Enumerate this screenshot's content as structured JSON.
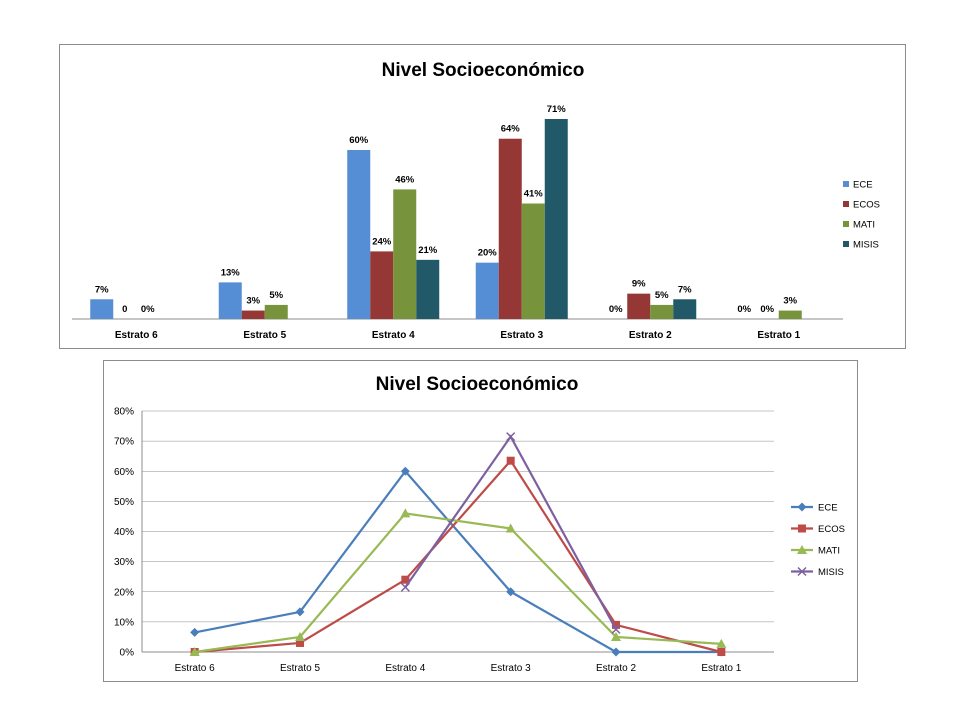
{
  "chart_data": [
    {
      "type": "bar",
      "title": "Nivel Socioeconómico",
      "categories": [
        "Estrato 6",
        "Estrato 5",
        "Estrato 4",
        "Estrato 3",
        "Estrato 2",
        "Estrato 1"
      ],
      "series": [
        {
          "name": "ECE",
          "color": "#558ED5",
          "values": [
            7,
            13,
            60,
            20,
            0,
            0
          ],
          "labels": [
            "7%",
            "13%",
            "60%",
            "20%",
            "0%",
            "0%"
          ]
        },
        {
          "name": "ECOS",
          "color": "#953735",
          "values": [
            0,
            3,
            24,
            64,
            9,
            0
          ],
          "labels": [
            "0",
            "3%",
            "24%",
            "64%",
            "9%",
            "0%"
          ]
        },
        {
          "name": "MATI",
          "color": "#77933C",
          "values": [
            0,
            5,
            46,
            41,
            5,
            3
          ],
          "labels": [
            "0%",
            "5%",
            "46%",
            "41%",
            "5%",
            "3%"
          ]
        },
        {
          "name": "MISIS",
          "color": "#215968",
          "values": [
            null,
            null,
            21,
            71,
            7,
            null
          ],
          "labels": [
            null,
            null,
            "21%",
            "71%",
            "7%",
            null
          ]
        }
      ],
      "ylim": [
        0,
        71
      ],
      "grid": false,
      "legend_position": "right",
      "xlabel": "",
      "ylabel": ""
    },
    {
      "type": "line",
      "title": "Nivel Socioeconómico",
      "categories": [
        "Estrato 6",
        "Estrato 5",
        "Estrato 4",
        "Estrato 3",
        "Estrato 2",
        "Estrato 1"
      ],
      "series": [
        {
          "name": "ECE",
          "color": "#4A7EBB",
          "marker": "diamond",
          "values": [
            6.5,
            13.3,
            60,
            20,
            0,
            0
          ]
        },
        {
          "name": "ECOS",
          "color": "#BE4B48",
          "marker": "square",
          "values": [
            0,
            3,
            24,
            63.5,
            9,
            0
          ]
        },
        {
          "name": "MATI",
          "color": "#98B954",
          "marker": "triangle",
          "values": [
            0,
            5,
            46,
            41,
            5,
            2.7
          ]
        },
        {
          "name": "MISIS",
          "color": "#7D60A0",
          "marker": "x",
          "values": [
            null,
            null,
            21.5,
            71.5,
            7.5,
            null
          ]
        }
      ],
      "ylim": [
        0,
        80
      ],
      "yticks": [
        "0%",
        "10%",
        "20%",
        "30%",
        "40%",
        "50%",
        "60%",
        "70%",
        "80%"
      ],
      "grid": true,
      "legend_position": "right",
      "xlabel": "",
      "ylabel": ""
    }
  ]
}
